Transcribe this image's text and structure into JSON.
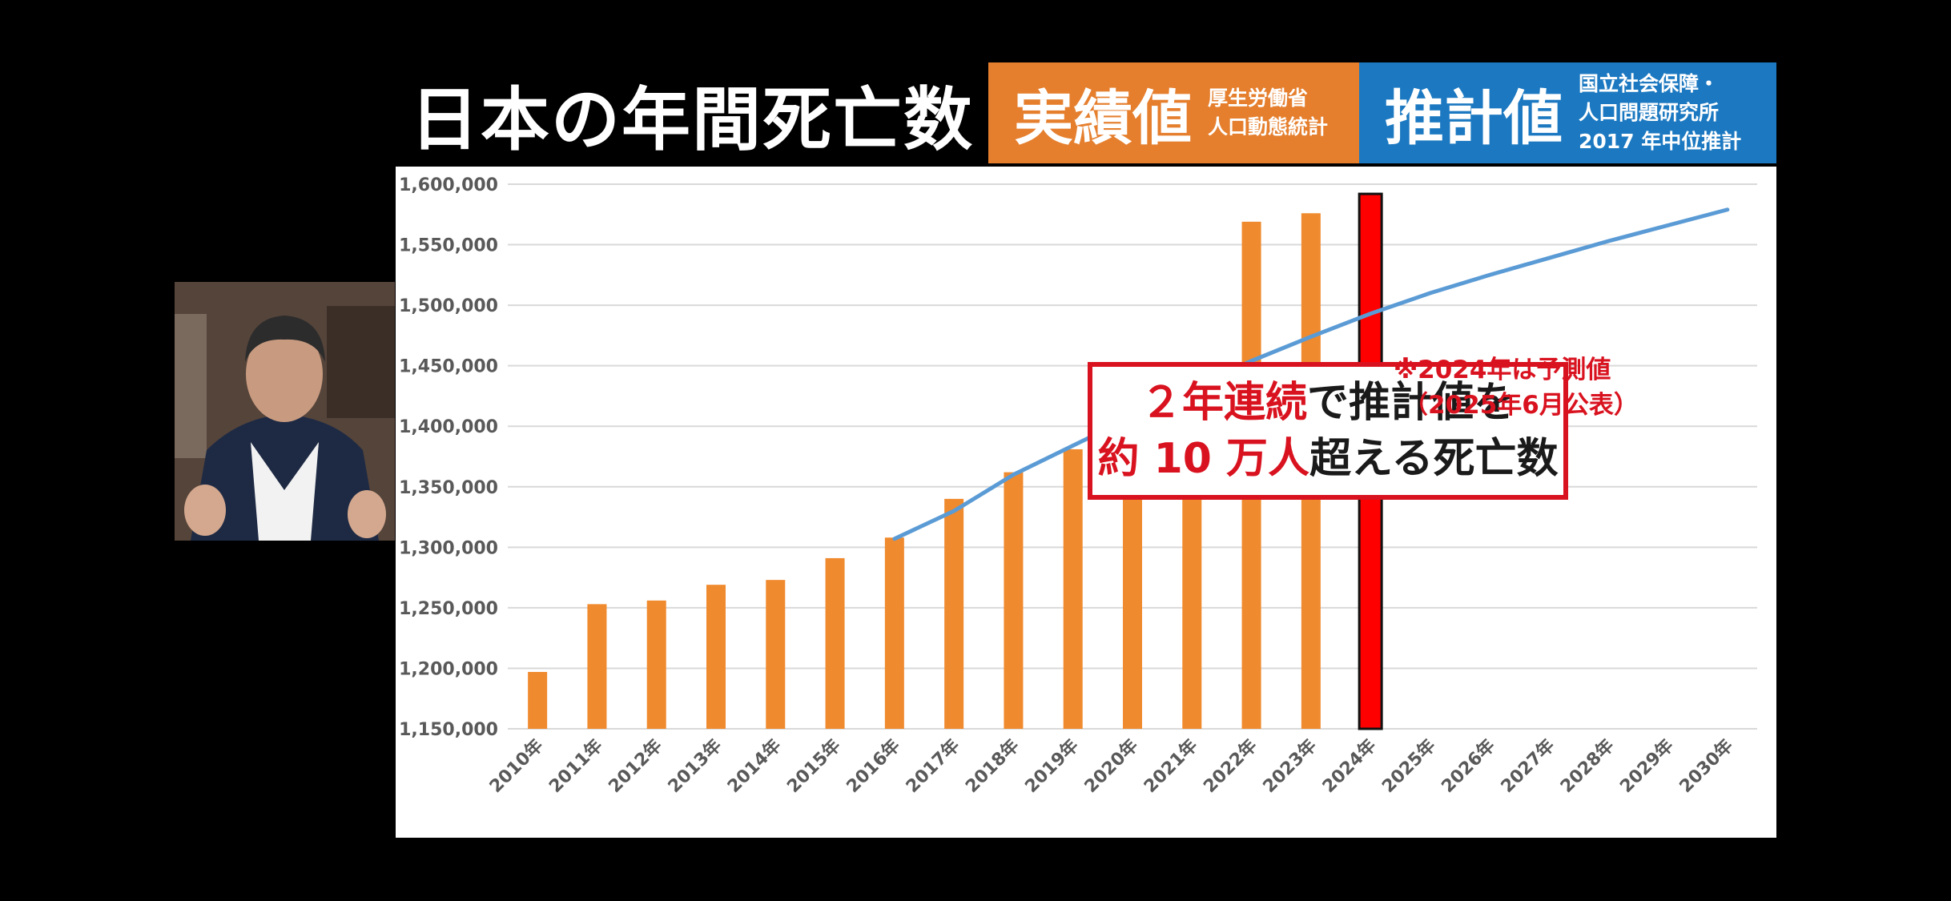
{
  "header": {
    "title": "日本の年間死亡数",
    "actual": {
      "label": "実績値",
      "source_lines": [
        "厚生労働省",
        "人口動態統計"
      ]
    },
    "forecast": {
      "label": "推計値",
      "source_lines": [
        "国立社会保障・",
        "人口問題研究所",
        "2017 年中位推計"
      ]
    }
  },
  "callout": {
    "line1": {
      "red": "２年連続",
      "black": "で推計値を"
    },
    "line2": {
      "red": "約 10 万人",
      "black": "超える死亡数"
    }
  },
  "note": {
    "line1": "※2024年は予測値",
    "line2": "（2025年6月公表）"
  },
  "colors": {
    "actual_bar": "#f08a2e",
    "highlight_bar": "#ff0000",
    "forecast_line": "#5b9bd5",
    "accent_red": "#d9121f",
    "actual_box": "#e57f2e",
    "forecast_box": "#1c79c1"
  },
  "webcam": {
    "icon": "presenter-video"
  },
  "chart_data": {
    "type": "bar",
    "categories": [
      "2010年",
      "2011年",
      "2012年",
      "2013年",
      "2014年",
      "2015年",
      "2016年",
      "2017年",
      "2018年",
      "2019年",
      "2020年",
      "2021年",
      "2022年",
      "2023年",
      "2024年",
      "2025年",
      "2026年",
      "2027年",
      "2028年",
      "2029年",
      "2030年"
    ],
    "series": [
      {
        "type": "bar",
        "values": [
          1197000,
          1253000,
          1256000,
          1269000,
          1273000,
          1291000,
          1308000,
          1340000,
          1362000,
          1381000,
          1373000,
          1440000,
          1569000,
          1576000,
          1592000,
          null,
          null,
          null,
          null,
          null,
          null
        ],
        "highlight_index": 14
      },
      {
        "type": "line",
        "values": [
          null,
          null,
          null,
          null,
          null,
          null,
          1307000,
          1330000,
          1360000,
          1384000,
          1408000,
          1432000,
          1454000,
          1474000,
          1493000,
          1510000,
          1525000,
          1539000,
          1553000,
          1566000,
          1579000
        ]
      }
    ],
    "yticks": [
      "1,150,000",
      "1,200,000",
      "1,250,000",
      "1,300,000",
      "1,350,000",
      "1,400,000",
      "1,450,000",
      "1,500,000",
      "1,550,000",
      "1,600,000"
    ],
    "ylim": [
      1150000,
      1600000
    ],
    "xlabel": "",
    "ylabel": "",
    "grid": true
  }
}
